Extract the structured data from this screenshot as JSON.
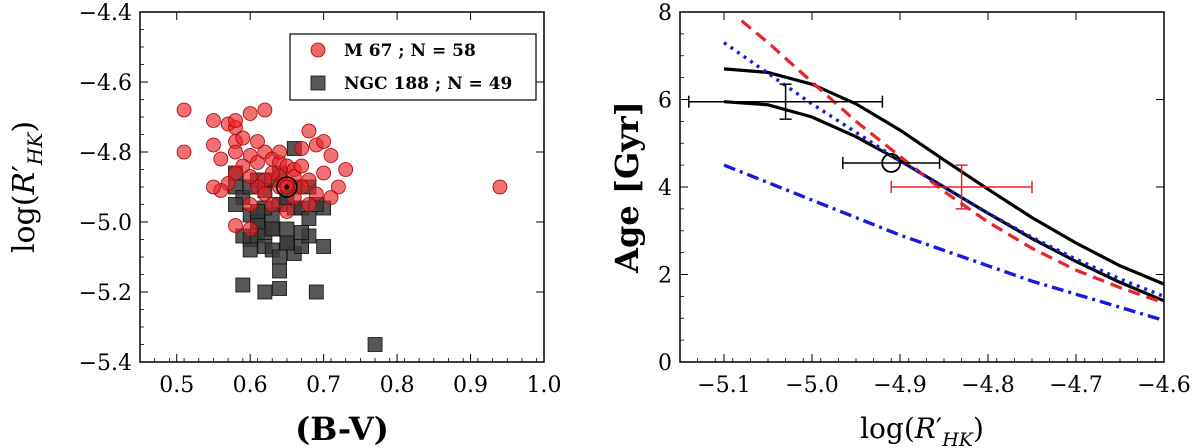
{
  "chart_data": [
    {
      "type": "scatter",
      "xlabel": "(B-V)",
      "ylabel_prefix": "log(",
      "ylabel_main": "R",
      "ylabel_prime": "′",
      "ylabel_sub": "HK",
      "ylabel_suffix": ")",
      "xlim": [
        0.45,
        1.0
      ],
      "ylim": [
        -5.4,
        -4.4
      ],
      "xticks": [
        0.5,
        0.6,
        0.7,
        0.8,
        0.9,
        1.0
      ],
      "xtick_labels": [
        "0.5",
        "0.6",
        "0.7",
        "0.8",
        "0.9",
        "1.0"
      ],
      "yticks": [
        -5.4,
        -5.2,
        -5.0,
        -4.8,
        -4.6,
        -4.4
      ],
      "ytick_labels": [
        "−5.4",
        "−5.2",
        "−5.0",
        "−4.8",
        "−4.6",
        "−4.4"
      ],
      "legend_position": "top-right",
      "series": [
        {
          "name": "M 67 ; N = 58",
          "marker": "circle",
          "color": "#e8232a",
          "points": [
            [
              0.51,
              -4.68
            ],
            [
              0.51,
              -4.8
            ],
            [
              0.55,
              -4.71
            ],
            [
              0.55,
              -4.78
            ],
            [
              0.56,
              -4.82
            ],
            [
              0.57,
              -4.72
            ],
            [
              0.58,
              -4.73
            ],
            [
              0.58,
              -4.71
            ],
            [
              0.58,
              -4.77
            ],
            [
              0.58,
              -4.8
            ],
            [
              0.59,
              -4.76
            ],
            [
              0.6,
              -4.69
            ],
            [
              0.62,
              -4.68
            ],
            [
              0.61,
              -4.77
            ],
            [
              0.6,
              -4.81
            ],
            [
              0.61,
              -4.83
            ],
            [
              0.62,
              -4.8
            ],
            [
              0.63,
              -4.82
            ],
            [
              0.64,
              -4.83
            ],
            [
              0.64,
              -4.8
            ],
            [
              0.65,
              -4.84
            ],
            [
              0.66,
              -4.85
            ],
            [
              0.67,
              -4.79
            ],
            [
              0.68,
              -4.74
            ],
            [
              0.69,
              -4.78
            ],
            [
              0.7,
              -4.77
            ],
            [
              0.71,
              -4.81
            ],
            [
              0.73,
              -4.85
            ],
            [
              0.72,
              -4.9
            ],
            [
              0.7,
              -4.86
            ],
            [
              0.69,
              -4.92
            ],
            [
              0.68,
              -4.88
            ],
            [
              0.67,
              -4.9
            ],
            [
              0.66,
              -4.87
            ],
            [
              0.65,
              -4.89
            ],
            [
              0.64,
              -4.87
            ],
            [
              0.63,
              -4.86
            ],
            [
              0.62,
              -4.88
            ],
            [
              0.61,
              -4.9
            ],
            [
              0.6,
              -4.87
            ],
            [
              0.59,
              -4.84
            ],
            [
              0.58,
              -4.86
            ],
            [
              0.57,
              -4.89
            ],
            [
              0.56,
              -4.91
            ],
            [
              0.55,
              -4.9
            ],
            [
              0.58,
              -5.01
            ],
            [
              0.6,
              -4.95
            ],
            [
              0.62,
              -4.92
            ],
            [
              0.64,
              -4.9
            ],
            [
              0.66,
              -4.93
            ],
            [
              0.68,
              -4.95
            ],
            [
              0.71,
              -4.93
            ],
            [
              0.63,
              -4.95
            ],
            [
              0.65,
              -4.97
            ],
            [
              0.6,
              -5.02
            ],
            [
              0.67,
              -4.84
            ],
            [
              0.94,
              -4.9
            ],
            [
              0.65,
              -4.9
            ]
          ]
        },
        {
          "name": "NGC 188 ; N = 49",
          "marker": "square",
          "color": "#3a3a3a",
          "points": [
            [
              0.58,
              -4.86
            ],
            [
              0.58,
              -4.9
            ],
            [
              0.59,
              -4.93
            ],
            [
              0.58,
              -4.95
            ],
            [
              0.6,
              -4.9
            ],
            [
              0.61,
              -4.88
            ],
            [
              0.62,
              -4.91
            ],
            [
              0.6,
              -4.98
            ],
            [
              0.61,
              -5.0
            ],
            [
              0.59,
              -5.04
            ],
            [
              0.6,
              -5.05
            ],
            [
              0.61,
              -5.04
            ],
            [
              0.6,
              -5.08
            ],
            [
              0.62,
              -5.03
            ],
            [
              0.63,
              -5.02
            ],
            [
              0.62,
              -5.07
            ],
            [
              0.63,
              -5.08
            ],
            [
              0.64,
              -5.1
            ],
            [
              0.65,
              -5.02
            ],
            [
              0.65,
              -5.06
            ],
            [
              0.66,
              -5.09
            ],
            [
              0.67,
              -5.07
            ],
            [
              0.68,
              -5.04
            ],
            [
              0.64,
              -4.95
            ],
            [
              0.63,
              -4.98
            ],
            [
              0.66,
              -4.96
            ],
            [
              0.67,
              -4.96
            ],
            [
              0.66,
              -4.9
            ],
            [
              0.64,
              -4.86
            ],
            [
              0.63,
              -4.88
            ],
            [
              0.65,
              -4.93
            ],
            [
              0.68,
              -4.9
            ],
            [
              0.7,
              -4.96
            ],
            [
              0.68,
              -4.99
            ],
            [
              0.66,
              -4.79
            ],
            [
              0.7,
              -5.07
            ],
            [
              0.65,
              -5.06
            ],
            [
              0.64,
              -5.14
            ],
            [
              0.61,
              -5.0
            ],
            [
              0.62,
              -4.96
            ],
            [
              0.59,
              -5.18
            ],
            [
              0.62,
              -5.2
            ],
            [
              0.64,
              -5.19
            ],
            [
              0.69,
              -5.2
            ],
            [
              0.77,
              -5.35
            ],
            [
              0.69,
              -4.95
            ],
            [
              0.61,
              -4.97
            ],
            [
              0.67,
              -5.03
            ],
            [
              0.63,
              -5.02
            ]
          ]
        }
      ],
      "annotations": [
        {
          "type": "open-circle",
          "x": 0.65,
          "y": -4.9
        }
      ]
    },
    {
      "type": "line",
      "xlabel_prefix": "log(",
      "xlabel_main": "R",
      "xlabel_prime": "′",
      "xlabel_sub": "HK",
      "xlabel_suffix": ")",
      "ylabel": "Age [Gyr]",
      "xlim": [
        -5.15,
        -4.6
      ],
      "ylim": [
        0,
        8
      ],
      "xticks": [
        -5.1,
        -5.0,
        -4.9,
        -4.8,
        -4.7,
        -4.6
      ],
      "xtick_labels": [
        "−5.1",
        "−5.0",
        "−4.9",
        "−4.8",
        "−4.7",
        "−4.6"
      ],
      "yticks": [
        0,
        2,
        4,
        6,
        8
      ],
      "ytick_labels": [
        "0",
        "2",
        "4",
        "6",
        "8"
      ],
      "series": [
        {
          "name": "solid-upper",
          "style": "solid",
          "color": "#000000",
          "points": [
            [
              -5.1,
              6.7
            ],
            [
              -5.05,
              6.62
            ],
            [
              -5.0,
              6.35
            ],
            [
              -4.95,
              5.9
            ],
            [
              -4.9,
              5.3
            ],
            [
              -4.85,
              4.62
            ],
            [
              -4.8,
              3.95
            ],
            [
              -4.75,
              3.3
            ],
            [
              -4.7,
              2.72
            ],
            [
              -4.65,
              2.2
            ],
            [
              -4.6,
              1.78
            ]
          ]
        },
        {
          "name": "solid-lower",
          "style": "solid",
          "color": "#000000",
          "points": [
            [
              -5.1,
              5.95
            ],
            [
              -5.05,
              5.88
            ],
            [
              -5.0,
              5.6
            ],
            [
              -4.95,
              5.15
            ],
            [
              -4.9,
              4.6
            ],
            [
              -4.85,
              4.0
            ],
            [
              -4.8,
              3.4
            ],
            [
              -4.75,
              2.82
            ],
            [
              -4.7,
              2.3
            ],
            [
              -4.65,
              1.82
            ],
            [
              -4.6,
              1.4
            ]
          ]
        },
        {
          "name": "red-dashed",
          "style": "dashed",
          "color": "#e8232a",
          "points": [
            [
              -5.08,
              7.8
            ],
            [
              -5.05,
              7.3
            ],
            [
              -5.0,
              6.4
            ],
            [
              -4.95,
              5.5
            ],
            [
              -4.9,
              4.7
            ],
            [
              -4.85,
              3.9
            ],
            [
              -4.8,
              3.2
            ],
            [
              -4.75,
              2.6
            ],
            [
              -4.7,
              2.1
            ],
            [
              -4.65,
              1.7
            ],
            [
              -4.6,
              1.35
            ]
          ]
        },
        {
          "name": "blue-dotted",
          "style": "dotted",
          "color": "#1a1adf",
          "points": [
            [
              -5.1,
              7.3
            ],
            [
              -5.05,
              6.6
            ],
            [
              -5.0,
              5.9
            ],
            [
              -4.95,
              5.25
            ],
            [
              -4.9,
              4.6
            ],
            [
              -4.85,
              4.0
            ],
            [
              -4.8,
              3.4
            ],
            [
              -4.75,
              2.85
            ],
            [
              -4.7,
              2.35
            ],
            [
              -4.65,
              1.9
            ],
            [
              -4.6,
              1.5
            ]
          ]
        },
        {
          "name": "blue-dashdot",
          "style": "dashdot",
          "color": "#1a1adf",
          "points": [
            [
              -5.1,
              4.5
            ],
            [
              -5.05,
              4.1
            ],
            [
              -5.0,
              3.7
            ],
            [
              -4.95,
              3.3
            ],
            [
              -4.9,
              2.9
            ],
            [
              -4.85,
              2.55
            ],
            [
              -4.8,
              2.2
            ],
            [
              -4.75,
              1.85
            ],
            [
              -4.7,
              1.55
            ],
            [
              -4.65,
              1.25
            ],
            [
              -4.6,
              0.95
            ]
          ]
        }
      ],
      "error_points": [
        {
          "x": -5.03,
          "y": 5.95,
          "xerr": 0.11,
          "yerr": 0.4,
          "color": "#000000",
          "marker": "none"
        },
        {
          "x": -4.91,
          "y": 4.55,
          "xerr": 0.055,
          "yerr": 0.0,
          "color": "#000000",
          "marker": "open-circle"
        },
        {
          "x": -4.83,
          "y": 4.0,
          "xerr": 0.08,
          "yerr": 0.5,
          "color": "#e8232a",
          "marker": "none"
        }
      ]
    }
  ]
}
